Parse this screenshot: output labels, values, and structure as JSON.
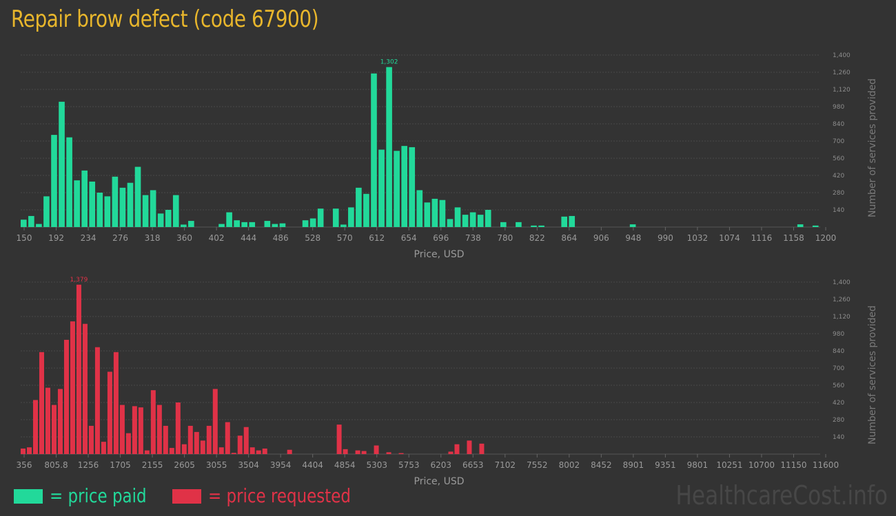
{
  "title": "Repair brow defect (code 67900)",
  "colors": {
    "paid": "#22d99a",
    "requested": "#e03247",
    "title": "#e8b62c",
    "background": "#333333"
  },
  "legend": {
    "paid_label": "= price paid",
    "requested_label": "= price requested"
  },
  "watermark": "HealthcareCost.info",
  "chart_data": [
    {
      "type": "bar",
      "name": "price paid",
      "xlabel": "Price, USD",
      "ylabel": "Number of services provided",
      "ylim": [
        0,
        1400
      ],
      "yticks": [
        "140",
        "280",
        "420",
        "560",
        "700",
        "840",
        "980",
        "1,120",
        "1,260",
        "1,400"
      ],
      "xticks": [
        "150",
        "192",
        "234",
        "276",
        "318",
        "360",
        "402",
        "444",
        "486",
        "528",
        "570",
        "612",
        "654",
        "696",
        "738",
        "780",
        "822",
        "864",
        "906",
        "948",
        "990",
        "1032",
        "1074",
        "1116",
        "1158",
        "1200"
      ],
      "peak_label": "1,302",
      "grid": true,
      "values": [
        60,
        90,
        25,
        250,
        750,
        1020,
        730,
        380,
        460,
        370,
        280,
        250,
        410,
        320,
        360,
        490,
        260,
        300,
        110,
        140,
        260,
        20,
        50,
        0,
        0,
        0,
        25,
        120,
        55,
        40,
        40,
        0,
        50,
        25,
        30,
        0,
        0,
        55,
        70,
        150,
        0,
        150,
        20,
        160,
        320,
        270,
        1250,
        630,
        1302,
        620,
        660,
        650,
        300,
        200,
        230,
        220,
        65,
        160,
        100,
        120,
        100,
        140,
        0,
        40,
        0,
        40,
        0,
        12,
        12,
        0,
        0,
        85,
        90,
        0,
        0,
        0,
        0,
        0,
        0,
        0,
        22,
        0,
        0,
        0,
        0,
        0,
        0,
        0,
        0,
        0,
        0,
        0,
        0,
        0,
        0,
        0,
        0,
        0,
        0,
        0,
        0,
        0,
        22,
        0,
        12
      ]
    },
    {
      "type": "bar",
      "name": "price requested",
      "xlabel": "Price, USD",
      "ylabel": "Number of services provided",
      "ylim": [
        0,
        1400
      ],
      "yticks": [
        "140",
        "280",
        "420",
        "560",
        "700",
        "840",
        "980",
        "1,120",
        "1,260",
        "1,400"
      ],
      "xticks": [
        "356",
        "805.8",
        "1256",
        "1705",
        "2155",
        "2605",
        "3055",
        "3504",
        "3954",
        "4404",
        "4854",
        "5303",
        "5753",
        "6203",
        "6653",
        "7102",
        "7552",
        "8002",
        "8452",
        "8901",
        "9351",
        "9801",
        "10251",
        "10700",
        "11150",
        "11600"
      ],
      "peak_label": "1,379",
      "grid": true,
      "values": [
        45,
        55,
        440,
        830,
        540,
        400,
        530,
        930,
        1080,
        1379,
        1060,
        230,
        870,
        100,
        670,
        830,
        400,
        170,
        390,
        380,
        30,
        520,
        400,
        230,
        50,
        420,
        80,
        230,
        180,
        110,
        230,
        530,
        55,
        260,
        10,
        150,
        220,
        55,
        30,
        45,
        0,
        0,
        0,
        35,
        0,
        0,
        0,
        0,
        0,
        0,
        0,
        240,
        40,
        0,
        30,
        25,
        0,
        70,
        0,
        15,
        0,
        8,
        0,
        0,
        0,
        0,
        0,
        0,
        0,
        20,
        80,
        0,
        110,
        0,
        85,
        0,
        0,
        0,
        0,
        0,
        0,
        0,
        0,
        0,
        0,
        0,
        0,
        0,
        0,
        0,
        0,
        0,
        0,
        0,
        0,
        0,
        0,
        0,
        0,
        0,
        0,
        0,
        0,
        0,
        0,
        0,
        0,
        0,
        0,
        0,
        0,
        0,
        0,
        0,
        0,
        0,
        0,
        0,
        0,
        0,
        0,
        0,
        0,
        0,
        0,
        0,
        0,
        0,
        0
      ]
    }
  ]
}
